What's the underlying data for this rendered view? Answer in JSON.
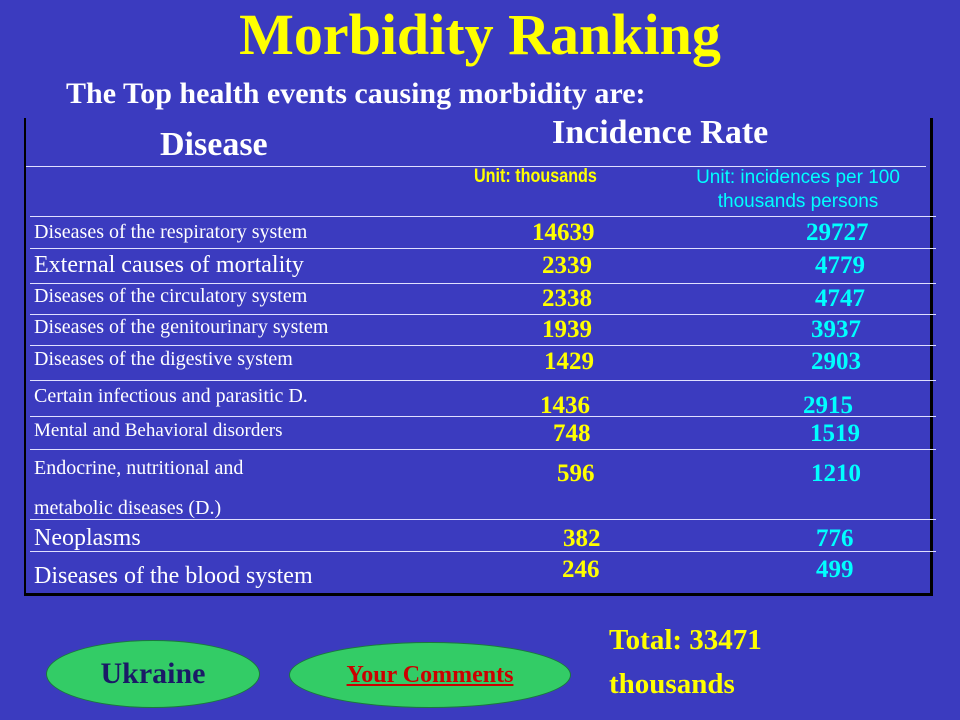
{
  "title": "Morbidity Ranking",
  "subtitle": "The Top health events causing morbidity  are:",
  "table": {
    "header_disease": "Disease",
    "header_incidence": "Incidence Rate",
    "unit_thousands": "Unit: thousands",
    "unit_rate_line1": "Unit: incidences  per 100",
    "unit_rate_line2": "thousands persons",
    "rows": [
      {
        "disease": "Diseases of the respiratory system",
        "thousands": "14639",
        "rate": "29727"
      },
      {
        "disease": "External causes of mortality",
        "thousands": "2339",
        "rate": "4779"
      },
      {
        "disease": "Diseases of the circulatory system",
        "thousands": "2338",
        "rate": "4747"
      },
      {
        "disease": "Diseases of the genitourinary system",
        "thousands": "1939",
        "rate": "3937"
      },
      {
        "disease": "Diseases of the digestive system",
        "thousands": "1429",
        "rate": "2903"
      },
      {
        "disease": "Certain infectious and parasitic D.",
        "thousands": "1436",
        "rate": "2915"
      },
      {
        "disease": "Mental and Behavioral disorders",
        "thousands": "748",
        "rate": "1519"
      },
      {
        "disease_line1": "Endocrine, nutritional and",
        "disease_line2": "metabolic diseases (D.)",
        "thousands": "596",
        "rate": "1210"
      },
      {
        "disease": "Neoplasms",
        "thousands": "382",
        "rate": "776"
      },
      {
        "disease": "Diseases of the blood system",
        "thousands": "246",
        "rate": "499"
      }
    ]
  },
  "total_line1": "Total: 33471",
  "total_line2": "thousands",
  "buttons": {
    "ukraine": "Ukraine",
    "comments": "Your Comments"
  },
  "colors": {
    "background": "#3b3bbf",
    "title": "#ffff00",
    "thousands_values": "#ffff00",
    "rate_values": "#00ffff",
    "button_fill": "#33cc66"
  }
}
